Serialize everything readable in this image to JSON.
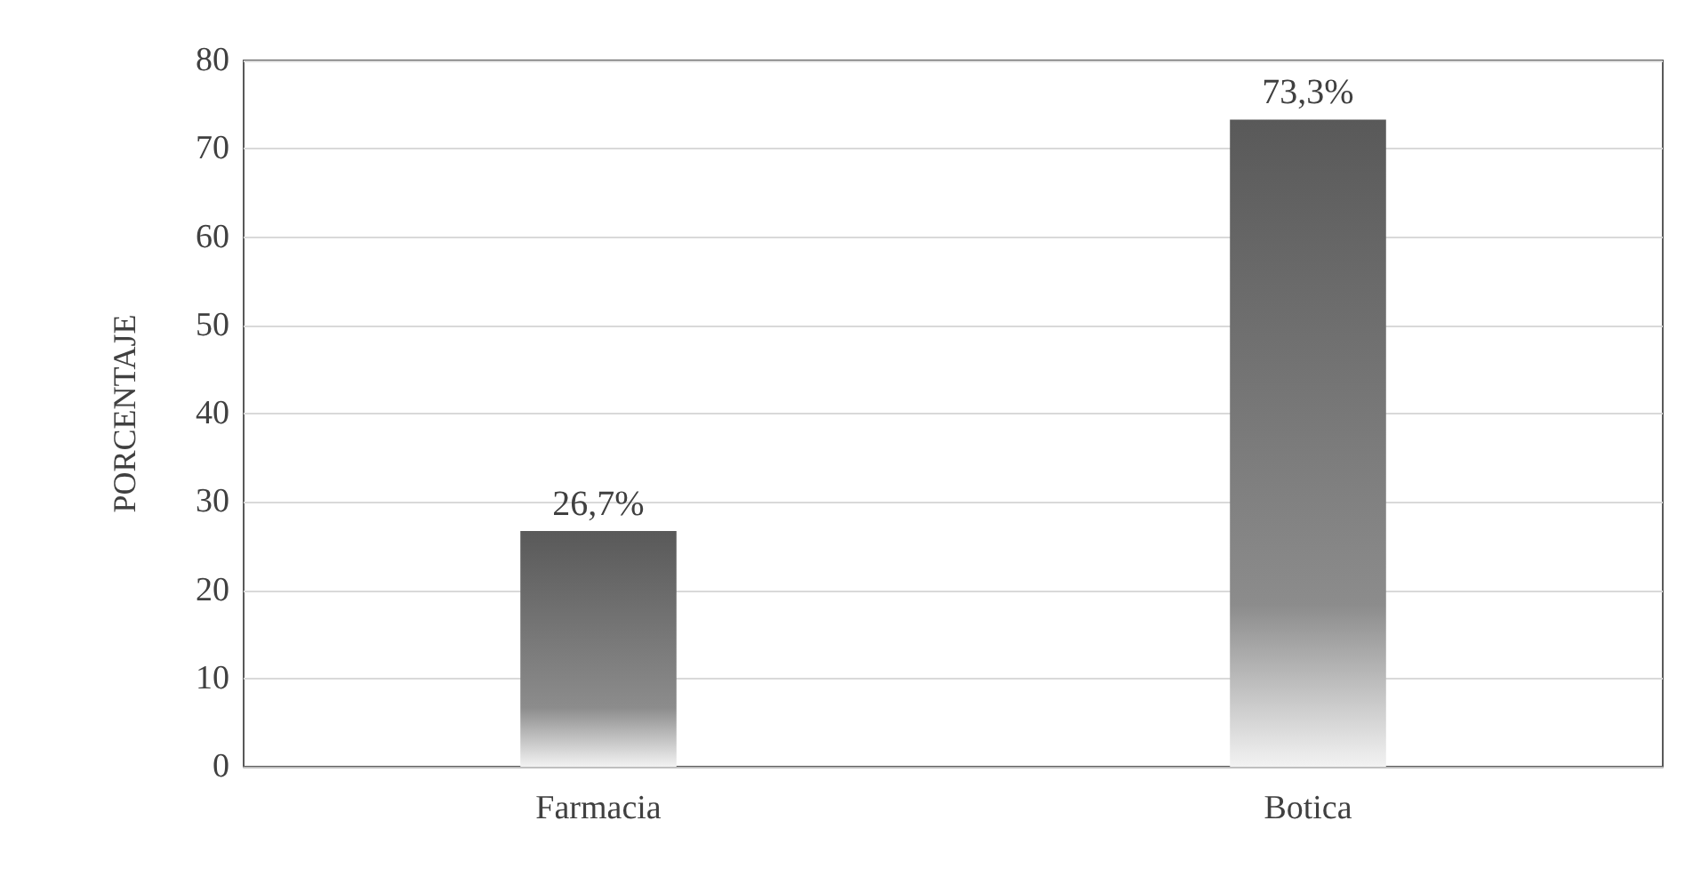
{
  "chart_data": {
    "type": "bar",
    "ylabel": "PORCENTAJE",
    "categories": [
      "Farmacia",
      "Botica"
    ],
    "values": [
      26.7,
      73.3
    ],
    "color": "#595959",
    "value_labels": [
      "26,7%",
      "73,3%"
    ],
    "ylim": [
      0,
      80
    ],
    "yticks": [
      0,
      10,
      20,
      30,
      40,
      50,
      60,
      70,
      80
    ],
    "grid": "y"
  }
}
